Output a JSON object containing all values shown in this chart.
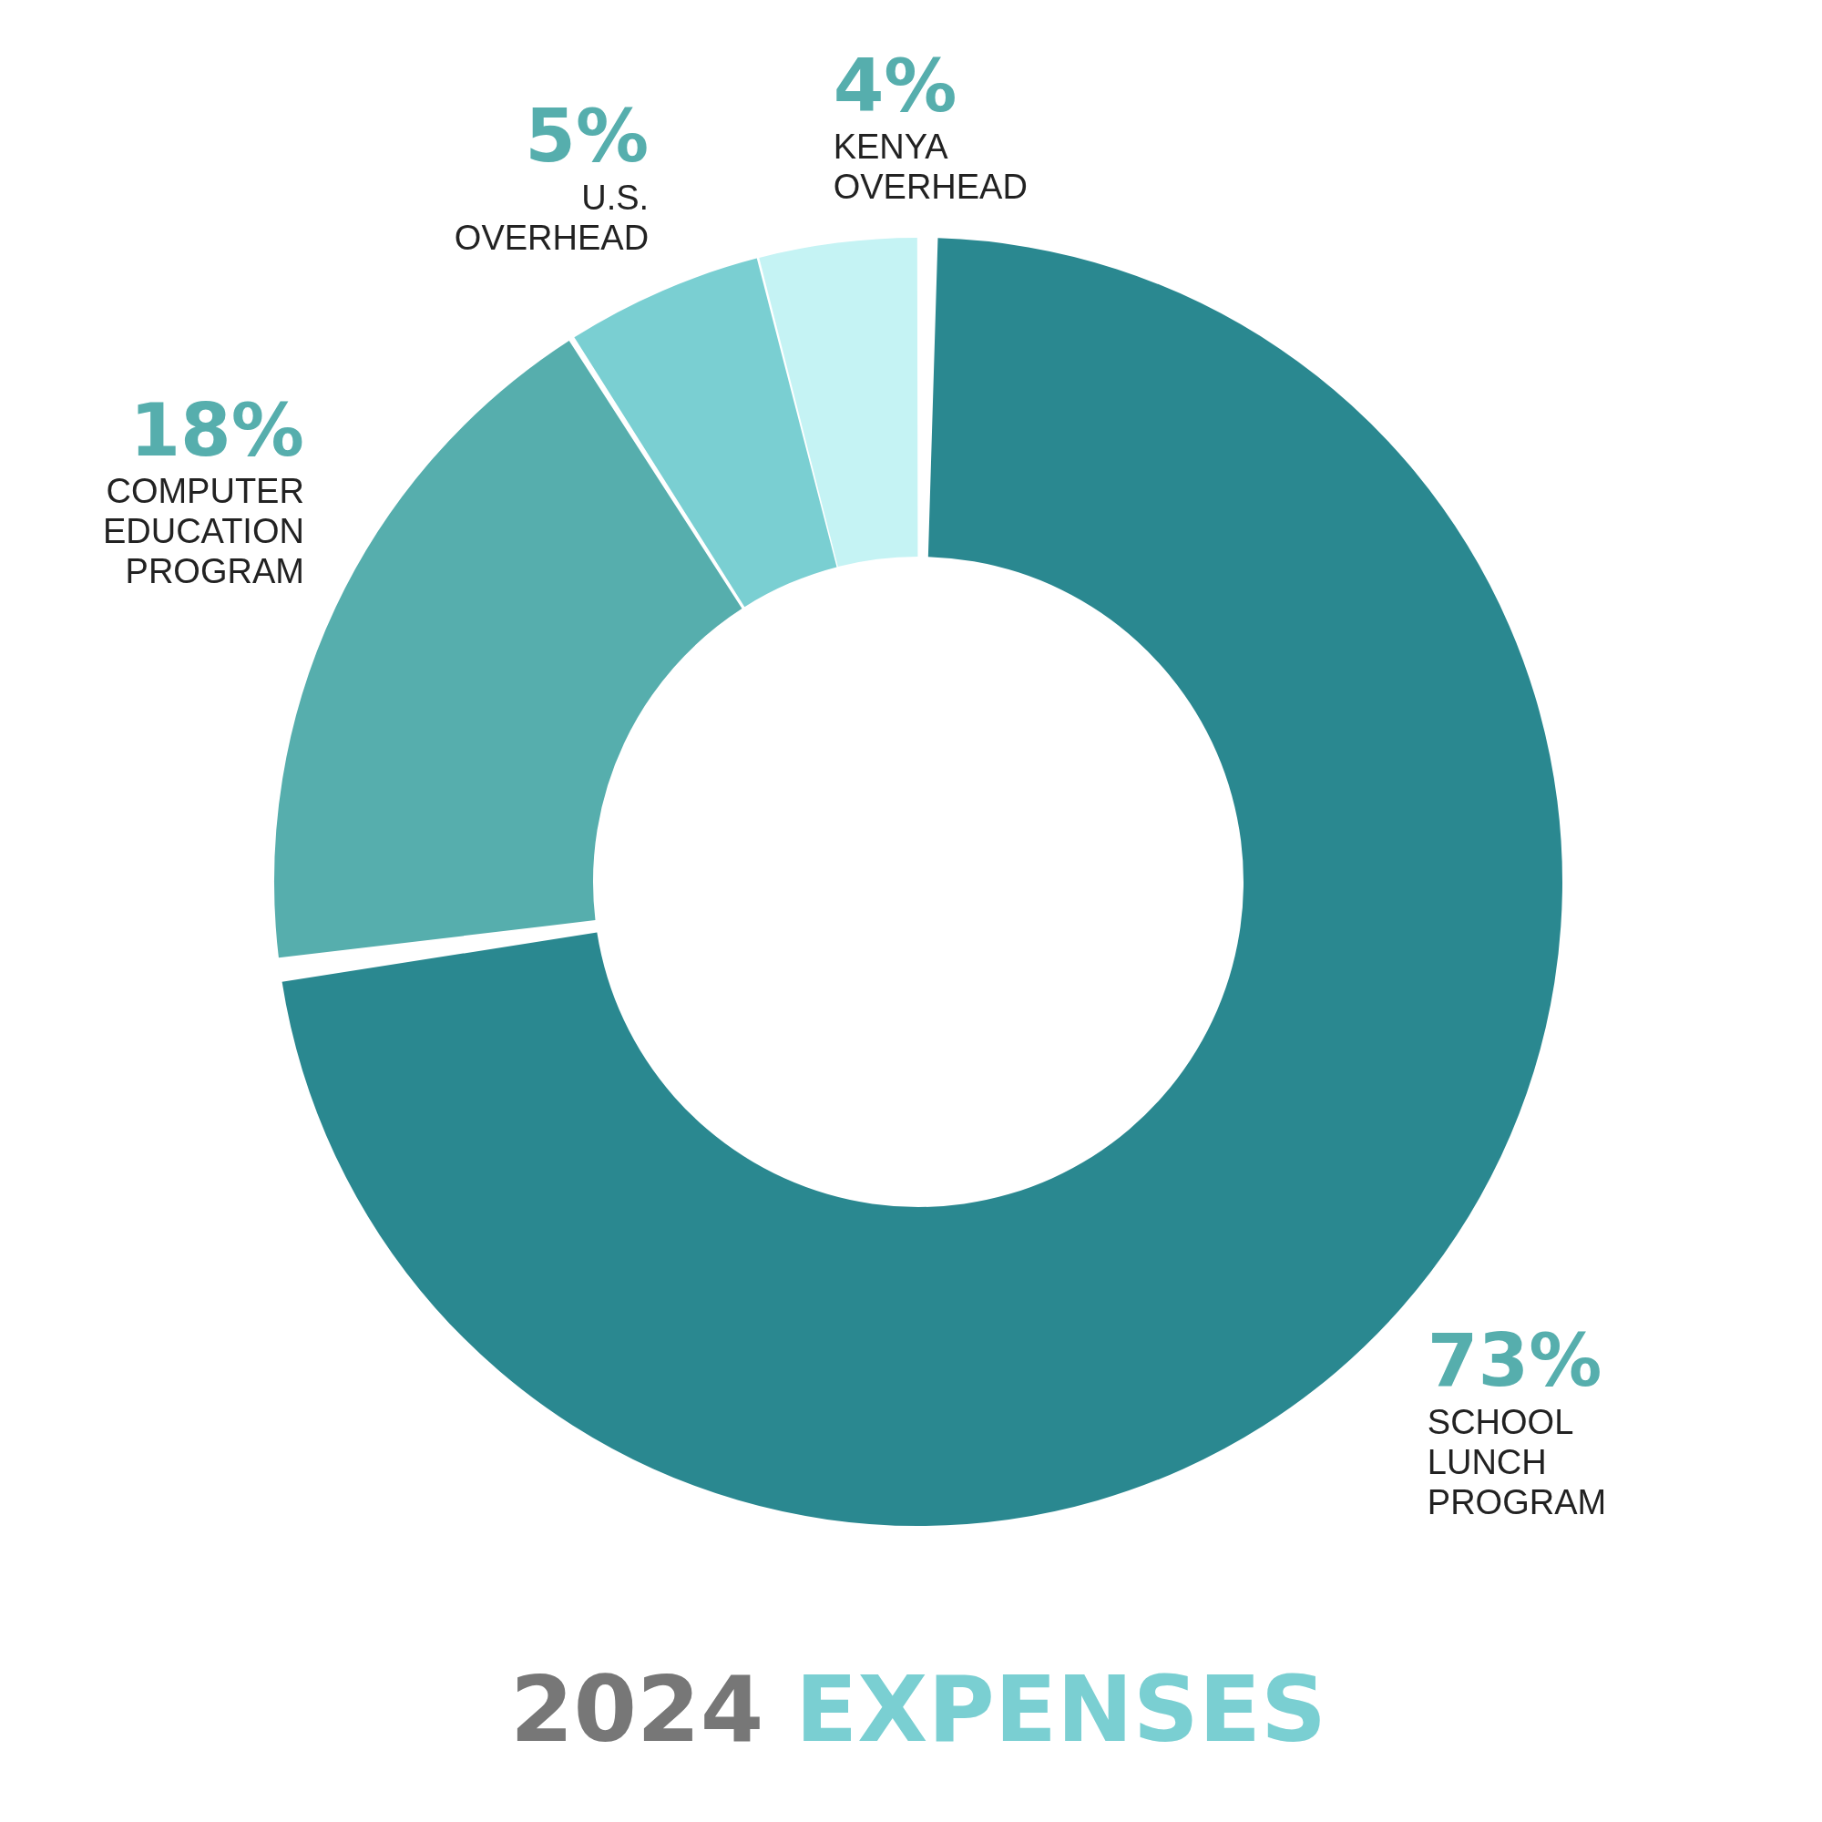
{
  "chart_data": {
    "type": "donut",
    "title": "2024 EXPENSES",
    "categories": [
      "SCHOOL LUNCH PROGRAM",
      "COMPUTER EDUCATION PROGRAM",
      "U.S. OVERHEAD",
      "KENYA OVERHEAD"
    ],
    "values": [
      73,
      18,
      5,
      4
    ],
    "value_labels": [
      "73%",
      "18%",
      "5%",
      "4%"
    ],
    "colors": [
      "#2a8890",
      "#56aead",
      "#7acfd2",
      "#c5f3f4"
    ],
    "legend": false
  }
}
